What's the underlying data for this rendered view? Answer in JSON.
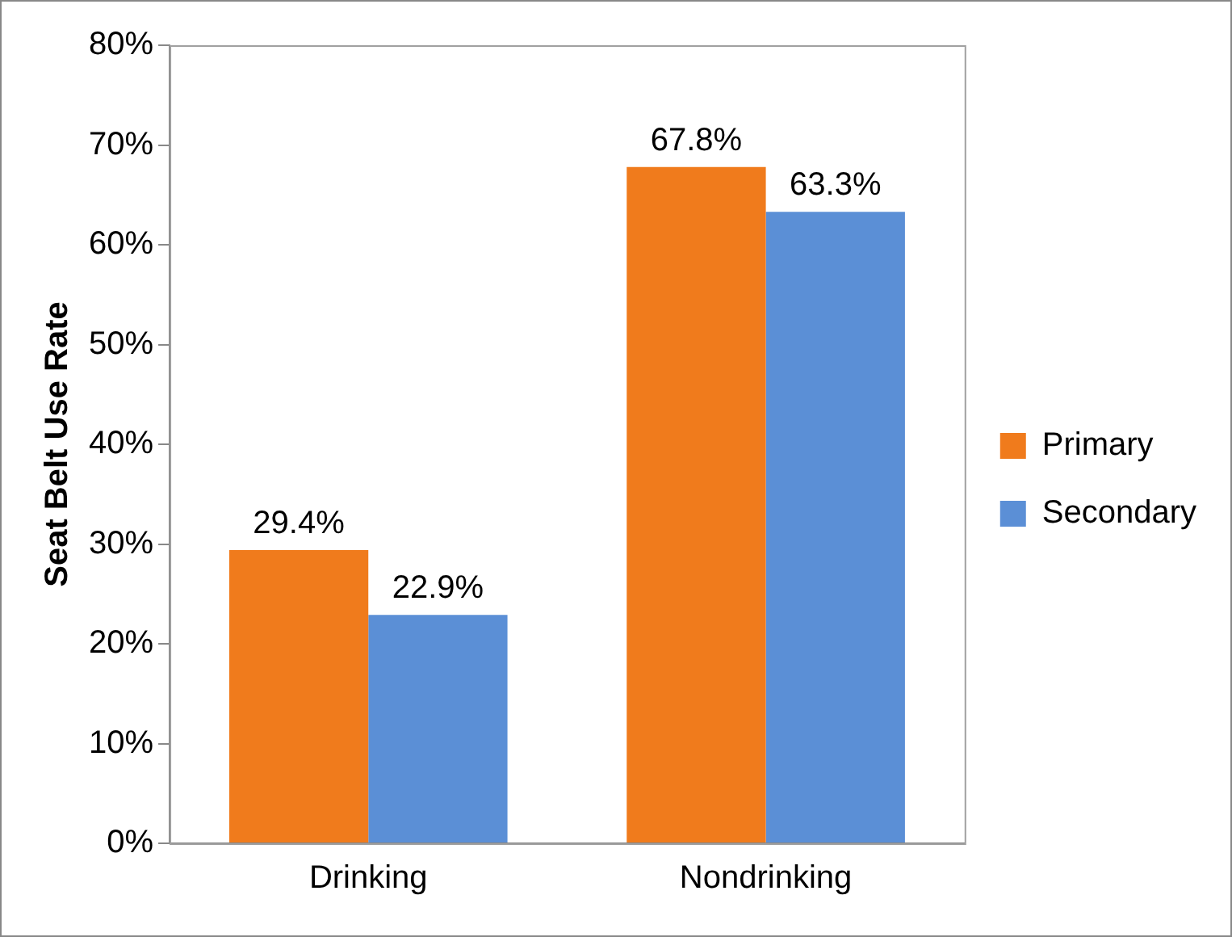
{
  "chart_data": {
    "type": "bar",
    "ylabel": "Seat Belt Use Rate",
    "categories": [
      "Drinking",
      "Nondrinking"
    ],
    "series": [
      {
        "name": "Primary",
        "color": "#f07b1c",
        "values": [
          29.4,
          67.8
        ],
        "value_labels": [
          "29.4%",
          "67.8%"
        ]
      },
      {
        "name": "Secondary",
        "color": "#5b8fd6",
        "values": [
          22.9,
          63.3
        ],
        "value_labels": [
          "22.9%",
          "63.3%"
        ]
      }
    ],
    "ylim": [
      0,
      80
    ],
    "yticks": [
      {
        "value": 0,
        "label": "0%"
      },
      {
        "value": 10,
        "label": "10%"
      },
      {
        "value": 20,
        "label": "20%"
      },
      {
        "value": 30,
        "label": "30%"
      },
      {
        "value": 40,
        "label": "40%"
      },
      {
        "value": 50,
        "label": "50%"
      },
      {
        "value": 60,
        "label": "60%"
      },
      {
        "value": 70,
        "label": "70%"
      },
      {
        "value": 80,
        "label": "80%"
      }
    ],
    "grid": false,
    "legend": "right"
  }
}
